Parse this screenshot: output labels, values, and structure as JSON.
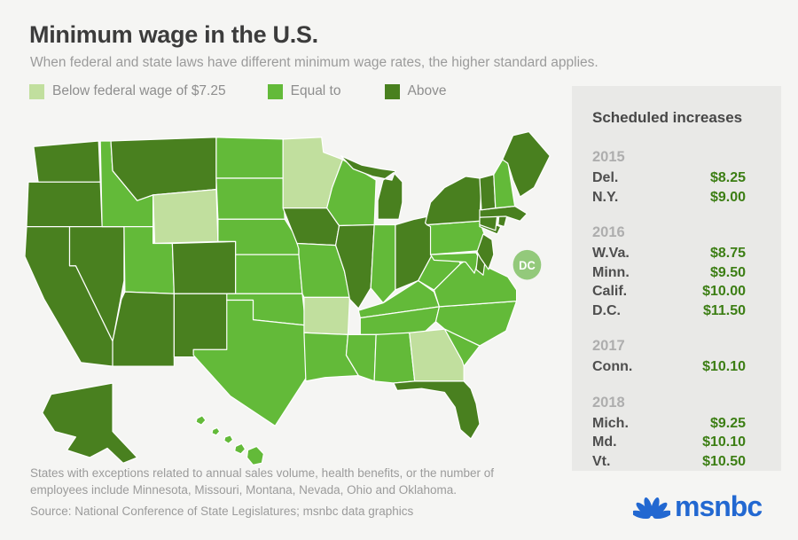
{
  "header": {
    "title": "Minimum wage in the U.S.",
    "subtitle": "When federal and state laws have different minimum wage rates, the higher standard applies."
  },
  "legend": {
    "items": [
      {
        "key": "below",
        "label": "Below federal wage of $7.25",
        "color": "#c1df9e"
      },
      {
        "key": "equal",
        "label": "Equal to",
        "color": "#63ba39"
      },
      {
        "key": "above",
        "label": "Above",
        "color": "#49801f"
      }
    ]
  },
  "map": {
    "dc_label": "DC",
    "dc_color": "#93c97b",
    "border_color": "#ffffff",
    "states": [
      {
        "abbr": "WA",
        "name": "Washington",
        "category": "above"
      },
      {
        "abbr": "OR",
        "name": "Oregon",
        "category": "above"
      },
      {
        "abbr": "CA",
        "name": "California",
        "category": "above"
      },
      {
        "abbr": "NV",
        "name": "Nevada",
        "category": "above"
      },
      {
        "abbr": "ID",
        "name": "Idaho",
        "category": "equal"
      },
      {
        "abbr": "MT",
        "name": "Montana",
        "category": "above"
      },
      {
        "abbr": "WY",
        "name": "Wyoming",
        "category": "below"
      },
      {
        "abbr": "UT",
        "name": "Utah",
        "category": "equal"
      },
      {
        "abbr": "CO",
        "name": "Colorado",
        "category": "above"
      },
      {
        "abbr": "AZ",
        "name": "Arizona",
        "category": "above"
      },
      {
        "abbr": "NM",
        "name": "New Mexico",
        "category": "above"
      },
      {
        "abbr": "ND",
        "name": "North Dakota",
        "category": "equal"
      },
      {
        "abbr": "SD",
        "name": "South Dakota",
        "category": "equal"
      },
      {
        "abbr": "NE",
        "name": "Nebraska",
        "category": "equal"
      },
      {
        "abbr": "KS",
        "name": "Kansas",
        "category": "equal"
      },
      {
        "abbr": "OK",
        "name": "Oklahoma",
        "category": "equal"
      },
      {
        "abbr": "TX",
        "name": "Texas",
        "category": "equal"
      },
      {
        "abbr": "MN",
        "name": "Minnesota",
        "category": "below"
      },
      {
        "abbr": "IA",
        "name": "Iowa",
        "category": "above"
      },
      {
        "abbr": "MO",
        "name": "Missouri",
        "category": "equal"
      },
      {
        "abbr": "AR",
        "name": "Arkansas",
        "category": "below"
      },
      {
        "abbr": "LA",
        "name": "Louisiana",
        "category": "equal"
      },
      {
        "abbr": "WI",
        "name": "Wisconsin",
        "category": "equal"
      },
      {
        "abbr": "IL",
        "name": "Illinois",
        "category": "above"
      },
      {
        "abbr": "IN",
        "name": "Indiana",
        "category": "equal"
      },
      {
        "abbr": "OH",
        "name": "Ohio",
        "category": "above"
      },
      {
        "abbr": "MI",
        "name": "Michigan",
        "category": "above"
      },
      {
        "abbr": "KY",
        "name": "Kentucky",
        "category": "equal"
      },
      {
        "abbr": "TN",
        "name": "Tennessee",
        "category": "equal"
      },
      {
        "abbr": "MS",
        "name": "Mississippi",
        "category": "equal"
      },
      {
        "abbr": "AL",
        "name": "Alabama",
        "category": "equal"
      },
      {
        "abbr": "GA",
        "name": "Georgia",
        "category": "below"
      },
      {
        "abbr": "SC",
        "name": "South Carolina",
        "category": "equal"
      },
      {
        "abbr": "NC",
        "name": "North Carolina",
        "category": "equal"
      },
      {
        "abbr": "FL",
        "name": "Florida",
        "category": "above"
      },
      {
        "abbr": "VA",
        "name": "Virginia",
        "category": "equal"
      },
      {
        "abbr": "WV",
        "name": "West Virginia",
        "category": "equal"
      },
      {
        "abbr": "PA",
        "name": "Pennsylvania",
        "category": "equal"
      },
      {
        "abbr": "MD",
        "name": "Maryland",
        "category": "equal"
      },
      {
        "abbr": "DE",
        "name": "Delaware",
        "category": "above"
      },
      {
        "abbr": "NJ",
        "name": "New Jersey",
        "category": "above"
      },
      {
        "abbr": "NY",
        "name": "New York",
        "category": "above"
      },
      {
        "abbr": "CT",
        "name": "Connecticut",
        "category": "above"
      },
      {
        "abbr": "RI",
        "name": "Rhode Island",
        "category": "above"
      },
      {
        "abbr": "MA",
        "name": "Massachusetts",
        "category": "above"
      },
      {
        "abbr": "VT",
        "name": "Vermont",
        "category": "above"
      },
      {
        "abbr": "NH",
        "name": "New Hampshire",
        "category": "equal"
      },
      {
        "abbr": "ME",
        "name": "Maine",
        "category": "above"
      },
      {
        "abbr": "AK",
        "name": "Alaska",
        "category": "above"
      },
      {
        "abbr": "HI",
        "name": "Hawaii",
        "category": "equal"
      }
    ]
  },
  "panel": {
    "title": "Scheduled increases",
    "value_color": "#3c7e14",
    "groups": [
      {
        "year": "2015",
        "rows": [
          {
            "state": "Del.",
            "value": "$8.25"
          },
          {
            "state": "N.Y.",
            "value": "$9.00"
          }
        ]
      },
      {
        "year": "2016",
        "rows": [
          {
            "state": "W.Va.",
            "value": "$8.75"
          },
          {
            "state": "Minn.",
            "value": "$9.50"
          },
          {
            "state": "Calif.",
            "value": "$10.00"
          },
          {
            "state": "D.C.",
            "value": "$11.50"
          }
        ]
      },
      {
        "year": "2017",
        "rows": [
          {
            "state": "Conn.",
            "value": "$10.10"
          }
        ]
      },
      {
        "year": "2018",
        "rows": [
          {
            "state": "Mich.",
            "value": "$9.25"
          },
          {
            "state": "Md.",
            "value": "$10.10"
          },
          {
            "state": "Vt.",
            "value": "$10.50"
          }
        ]
      }
    ]
  },
  "footnote": "States with exceptions related to annual sales volume, health benefits, or the number of employees include Minnesota, Missouri, Montana, Nevada, Ohio and Oklahoma.",
  "source": "Source: National Conference of State Legislatures; msnbc data graphics",
  "logo": {
    "text": "msnbc",
    "color": "#2268d1"
  },
  "chart_data": [
    {
      "type": "heatmap",
      "subtype": "choropleth-us-map",
      "title": "Minimum wage in the U.S.",
      "legend_entries": [
        "Below federal wage of $7.25",
        "Equal to",
        "Above"
      ],
      "below_federal": [
        "Wyoming",
        "Minnesota",
        "Arkansas",
        "Georgia"
      ],
      "equal_to_federal": [
        "Idaho",
        "Utah",
        "North Dakota",
        "South Dakota",
        "Nebraska",
        "Kansas",
        "Oklahoma",
        "Texas",
        "Missouri",
        "Wisconsin",
        "Indiana",
        "Kentucky",
        "Tennessee",
        "Mississippi",
        "Alabama",
        "Louisiana",
        "South Carolina",
        "North Carolina",
        "Virginia",
        "West Virginia",
        "Maryland",
        "Pennsylvania",
        "New Hampshire",
        "Hawaii"
      ],
      "above_federal": [
        "Washington",
        "Oregon",
        "California",
        "Nevada",
        "Montana",
        "Colorado",
        "Arizona",
        "New Mexico",
        "Alaska",
        "Iowa",
        "Illinois",
        "Michigan",
        "Ohio",
        "Florida",
        "Maine",
        "Vermont",
        "Massachusetts",
        "Connecticut",
        "Rhode Island",
        "New York",
        "New Jersey",
        "Delaware",
        "District of Columbia"
      ]
    },
    {
      "type": "table",
      "title": "Scheduled increases",
      "columns": [
        "year",
        "state",
        "new_wage"
      ],
      "rows": [
        [
          "2015",
          "Del.",
          "$8.25"
        ],
        [
          "2015",
          "N.Y.",
          "$9.00"
        ],
        [
          "2016",
          "W.Va.",
          "$8.75"
        ],
        [
          "2016",
          "Minn.",
          "$9.50"
        ],
        [
          "2016",
          "Calif.",
          "$10.00"
        ],
        [
          "2016",
          "D.C.",
          "$11.50"
        ],
        [
          "2017",
          "Conn.",
          "$10.10"
        ],
        [
          "2018",
          "Mich.",
          "$9.25"
        ],
        [
          "2018",
          "Md.",
          "$10.10"
        ],
        [
          "2018",
          "Vt.",
          "$10.50"
        ]
      ]
    }
  ]
}
